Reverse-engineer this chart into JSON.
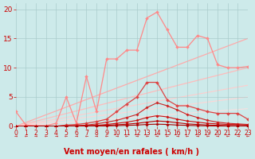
{
  "bg_color": "#cdeaea",
  "grid_color": "#aacccc",
  "xlabel": "Vent moyen/en rafales ( km/h )",
  "xlabel_color": "#cc0000",
  "xlabel_fontsize": 7,
  "tick_color": "#cc0000",
  "tick_fontsize": 5.5,
  "ylim": [
    0,
    21
  ],
  "xlim": [
    0,
    23
  ],
  "yticks": [
    0,
    5,
    10,
    15,
    20
  ],
  "xticks": [
    0,
    1,
    2,
    3,
    4,
    5,
    6,
    7,
    8,
    9,
    10,
    11,
    12,
    13,
    14,
    15,
    16,
    17,
    18,
    19,
    20,
    21,
    22,
    23
  ],
  "lines": [
    {
      "x": [
        0,
        23
      ],
      "y": [
        0,
        15.0
      ],
      "color": "#ffaaaa",
      "lw": 0.9,
      "marker": null
    },
    {
      "x": [
        0,
        23
      ],
      "y": [
        0,
        10.0
      ],
      "color": "#ffbbbb",
      "lw": 0.9,
      "marker": null
    },
    {
      "x": [
        0,
        23
      ],
      "y": [
        0,
        7.0
      ],
      "color": "#ffcccc",
      "lw": 0.8,
      "marker": null
    },
    {
      "x": [
        0,
        23
      ],
      "y": [
        0,
        5.0
      ],
      "color": "#ffd5d5",
      "lw": 0.8,
      "marker": null
    },
    {
      "x": [
        0,
        23
      ],
      "y": [
        0,
        3.0
      ],
      "color": "#ffdede",
      "lw": 0.7,
      "marker": null
    },
    {
      "x": [
        0,
        1,
        2,
        3,
        4,
        5,
        6,
        7,
        8,
        9,
        10,
        11,
        12,
        13,
        14,
        15,
        16,
        17,
        18,
        19,
        20,
        21,
        22,
        23
      ],
      "y": [
        2.5,
        0.2,
        0.1,
        0.1,
        0.5,
        5.0,
        0.5,
        8.5,
        2.5,
        11.5,
        11.5,
        13.0,
        13.0,
        18.5,
        19.5,
        16.5,
        13.5,
        13.5,
        15.5,
        15.0,
        10.5,
        10.0,
        10.0,
        10.2
      ],
      "color": "#ff8888",
      "lw": 0.9,
      "marker": "D",
      "ms": 2.0
    },
    {
      "x": [
        0,
        1,
        2,
        3,
        4,
        5,
        6,
        7,
        8,
        9,
        10,
        11,
        12,
        13,
        14,
        15,
        16,
        17,
        18,
        19,
        20,
        21,
        22,
        23
      ],
      "y": [
        0,
        0,
        0,
        0,
        0,
        0.2,
        0.3,
        0.5,
        0.8,
        1.2,
        2.5,
        3.8,
        5.0,
        7.5,
        7.5,
        4.5,
        3.5,
        3.5,
        3.0,
        2.5,
        2.2,
        2.2,
        2.2,
        1.2
      ],
      "color": "#dd4444",
      "lw": 0.9,
      "marker": "D",
      "ms": 2.0
    },
    {
      "x": [
        0,
        1,
        2,
        3,
        4,
        5,
        6,
        7,
        8,
        9,
        10,
        11,
        12,
        13,
        14,
        15,
        16,
        17,
        18,
        19,
        20,
        21,
        22,
        23
      ],
      "y": [
        0,
        0,
        0,
        0,
        0,
        0.1,
        0.1,
        0.2,
        0.4,
        0.7,
        1.0,
        1.5,
        2.0,
        3.2,
        4.0,
        3.5,
        2.8,
        2.0,
        1.5,
        1.0,
        0.7,
        0.5,
        0.4,
        0.3
      ],
      "color": "#cc2222",
      "lw": 0.8,
      "marker": "D",
      "ms": 1.8
    },
    {
      "x": [
        0,
        1,
        2,
        3,
        4,
        5,
        6,
        7,
        8,
        9,
        10,
        11,
        12,
        13,
        14,
        15,
        16,
        17,
        18,
        19,
        20,
        21,
        22,
        23
      ],
      "y": [
        0,
        0,
        0,
        0,
        0,
        0,
        0.05,
        0.1,
        0.15,
        0.3,
        0.5,
        0.7,
        1.0,
        1.5,
        1.8,
        1.6,
        1.2,
        0.9,
        0.7,
        0.5,
        0.4,
        0.3,
        0.3,
        0.2
      ],
      "color": "#cc1111",
      "lw": 0.8,
      "marker": "D",
      "ms": 1.8
    },
    {
      "x": [
        0,
        1,
        2,
        3,
        4,
        5,
        6,
        7,
        8,
        9,
        10,
        11,
        12,
        13,
        14,
        15,
        16,
        17,
        18,
        19,
        20,
        21,
        22,
        23
      ],
      "y": [
        0,
        0,
        0,
        0,
        0,
        0,
        0,
        0.05,
        0.08,
        0.15,
        0.25,
        0.35,
        0.5,
        0.7,
        0.9,
        0.8,
        0.6,
        0.4,
        0.3,
        0.2,
        0.15,
        0.1,
        0.1,
        0.08
      ],
      "color": "#bb0000",
      "lw": 0.8,
      "marker": "D",
      "ms": 1.8
    },
    {
      "x": [
        0,
        1,
        2,
        3,
        4,
        5,
        6,
        7,
        8,
        9,
        10,
        11,
        12,
        13,
        14,
        15,
        16,
        17,
        18,
        19,
        20,
        21,
        22,
        23
      ],
      "y": [
        0,
        0,
        0,
        0,
        0,
        0,
        0,
        0,
        0.02,
        0.05,
        0.1,
        0.15,
        0.2,
        0.3,
        0.35,
        0.3,
        0.2,
        0.15,
        0.1,
        0.07,
        0.05,
        0.03,
        0.02,
        0.02
      ],
      "color": "#aa0000",
      "lw": 0.8,
      "marker": "D",
      "ms": 1.8
    }
  ]
}
